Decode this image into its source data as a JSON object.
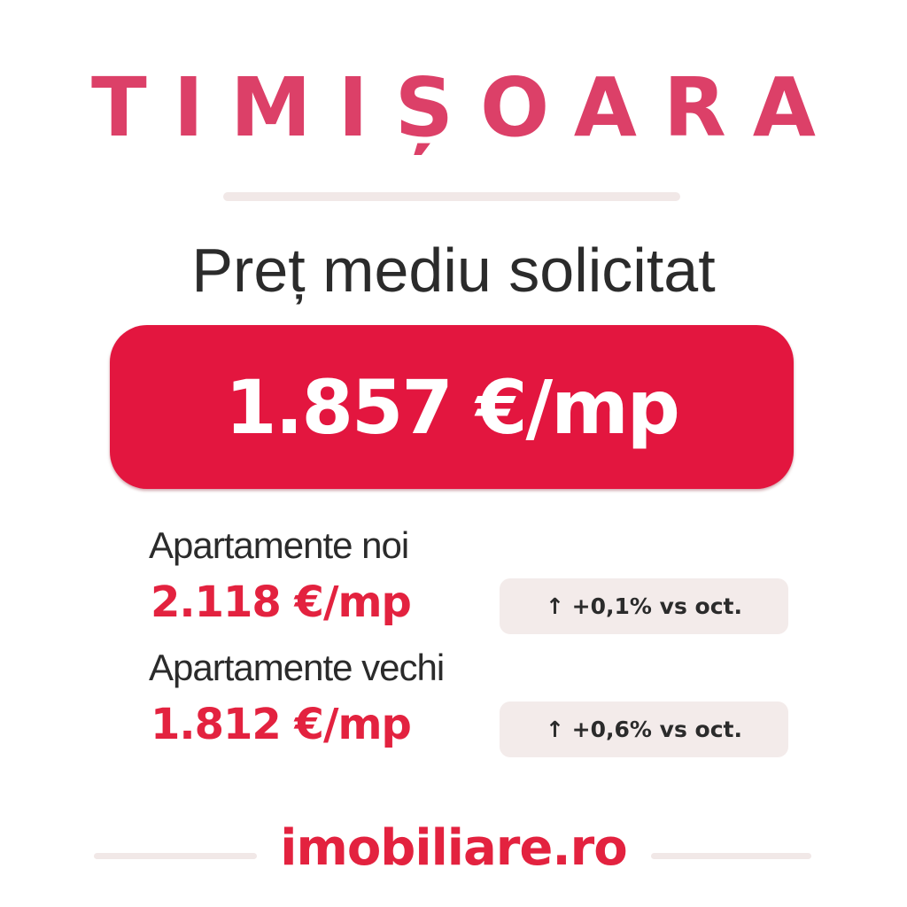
{
  "title": "TIMIȘOARA",
  "subtitle": "Preț mediu solicitat",
  "main_price": "1.857 €/mp",
  "rows": [
    {
      "label": "Apartamente noi",
      "value": "2.118 €/mp",
      "change": "↑ +0,1% vs oct."
    },
    {
      "label": "Apartamente vechi",
      "value": "1.812 €/mp",
      "change": "↑ +0,6% vs oct."
    }
  ],
  "logo": "imobiliare.ro",
  "colors": {
    "brand": "#e3163f",
    "title": "#dc4068",
    "badge_bg": "#f3ebea",
    "text": "#2b2b2b"
  }
}
